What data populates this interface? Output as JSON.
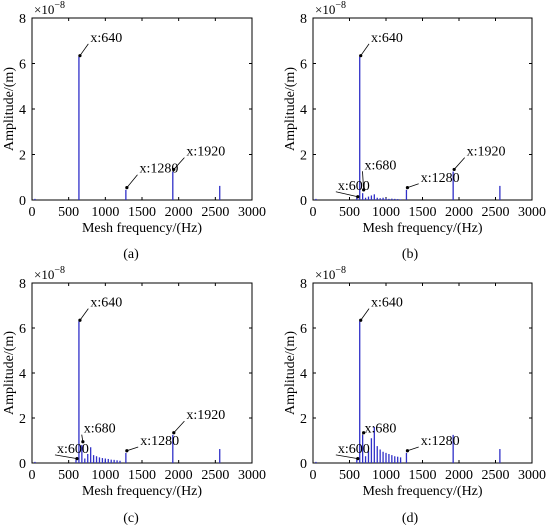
{
  "chart_data": [
    {
      "panel": "a",
      "caption": "(a)",
      "type": "bar",
      "xlabel": "Mesh frequency/(Hz)",
      "ylabel": "Amplitude/(m)",
      "y_multiplier": "×10",
      "y_multiplier_exp": "−8",
      "xlim": [
        0,
        3000
      ],
      "ylim": [
        0,
        8
      ],
      "xticks": [
        "0",
        "500",
        "1000",
        "1500",
        "2000",
        "2500",
        "3000"
      ],
      "yticks": [
        "0",
        "2",
        "4",
        "6",
        "8"
      ],
      "bar_color": "#3030c8",
      "x": [
        40,
        640,
        1280,
        1920,
        2560
      ],
      "values": [
        0.05,
        6.3,
        0.45,
        1.25,
        0.62
      ],
      "annotations": [
        {
          "text": "x:640",
          "x": 640,
          "y": 6.3,
          "tx": 850,
          "ty": 6.95
        },
        {
          "text": "x:1280",
          "x": 1280,
          "y": 0.5,
          "tx": 1520,
          "ty": 1.2
        },
        {
          "text": "x:1920",
          "x": 1920,
          "y": 1.3,
          "tx": 2160,
          "ty": 1.95
        }
      ]
    },
    {
      "panel": "b",
      "caption": "(b)",
      "type": "bar",
      "xlabel": "Mesh frequency/(Hz)",
      "ylabel": "Amplitude/(m)",
      "y_multiplier": "×10",
      "y_multiplier_exp": "−8",
      "xlim": [
        0,
        3000
      ],
      "ylim": [
        0,
        8
      ],
      "xticks": [
        "0",
        "500",
        "1000",
        "1500",
        "2000",
        "2500",
        "3000"
      ],
      "yticks": [
        "0",
        "2",
        "4",
        "6",
        "8"
      ],
      "bar_color": "#3030c8",
      "x": [
        40,
        600,
        640,
        680,
        720,
        760,
        800,
        840,
        880,
        920,
        960,
        1000,
        1040,
        1080,
        1120,
        1160,
        1200,
        1280,
        1920,
        2560
      ],
      "values": [
        0.05,
        0.1,
        6.3,
        0.3,
        0.1,
        0.15,
        0.2,
        0.25,
        0.1,
        0.08,
        0.1,
        0.08,
        0.05,
        0.06,
        0.05,
        0.04,
        0.03,
        0.45,
        1.25,
        0.62
      ],
      "annotations": [
        {
          "text": "x:640",
          "x": 640,
          "y": 6.3,
          "tx": 850,
          "ty": 6.95
        },
        {
          "text": "x:680",
          "x": 680,
          "y": 0.4,
          "tx": 760,
          "ty": 1.35
        },
        {
          "text": "x:600",
          "x": 600,
          "y": 0.1,
          "tx": 395,
          "ty": 0.45
        },
        {
          "text": "x:1280",
          "x": 1280,
          "y": 0.5,
          "tx": 1530,
          "ty": 0.8
        },
        {
          "text": "x:1920",
          "x": 1920,
          "y": 1.3,
          "tx": 2160,
          "ty": 1.95
        }
      ]
    },
    {
      "panel": "c",
      "caption": "(c)",
      "type": "bar",
      "xlabel": "Mesh frequency/(Hz)",
      "ylabel": "Amplitude/(m)",
      "y_multiplier": "×10",
      "y_multiplier_exp": "−8",
      "xlim": [
        0,
        3000
      ],
      "ylim": [
        0,
        8
      ],
      "xticks": [
        "0",
        "500",
        "1000",
        "1500",
        "2000",
        "2500",
        "3000"
      ],
      "yticks": [
        "0",
        "2",
        "4",
        "6",
        "8"
      ],
      "bar_color": "#3030c8",
      "x": [
        40,
        600,
        640,
        680,
        720,
        760,
        800,
        840,
        880,
        920,
        960,
        1000,
        1040,
        1080,
        1120,
        1160,
        1200,
        1280,
        1920,
        2560
      ],
      "values": [
        0.05,
        0.15,
        6.3,
        0.8,
        0.2,
        0.4,
        0.7,
        0.35,
        0.3,
        0.25,
        0.22,
        0.2,
        0.18,
        0.15,
        0.14,
        0.12,
        0.1,
        0.45,
        1.25,
        0.62
      ],
      "annotations": [
        {
          "text": "x:640",
          "x": 640,
          "y": 6.3,
          "tx": 850,
          "ty": 6.95
        },
        {
          "text": "x:680",
          "x": 680,
          "y": 0.9,
          "tx": 760,
          "ty": 1.35
        },
        {
          "text": "x:600",
          "x": 600,
          "y": 0.15,
          "tx": 395,
          "ty": 0.45
        },
        {
          "text": "x:1280",
          "x": 1280,
          "y": 0.5,
          "tx": 1530,
          "ty": 0.8
        },
        {
          "text": "x:1920",
          "x": 1920,
          "y": 1.3,
          "tx": 2160,
          "ty": 1.95
        }
      ]
    },
    {
      "panel": "d",
      "caption": "(d)",
      "type": "bar",
      "xlabel": "Mesh frequency/(Hz)",
      "ylabel": "Amplitude/(m)",
      "y_multiplier": "×10",
      "y_multiplier_exp": "−8",
      "xlim": [
        0,
        3000
      ],
      "ylim": [
        0,
        8
      ],
      "xticks": [
        "0",
        "500",
        "1000",
        "1500",
        "2000",
        "2500",
        "3000"
      ],
      "yticks": [
        "0",
        "2",
        "4",
        "6",
        "8"
      ],
      "bar_color": "#3030c8",
      "x": [
        40,
        600,
        640,
        680,
        720,
        760,
        800,
        840,
        880,
        920,
        960,
        1000,
        1040,
        1080,
        1120,
        1160,
        1200,
        1280,
        1920,
        2560
      ],
      "values": [
        0.05,
        0.15,
        6.3,
        1.25,
        0.3,
        0.55,
        1.1,
        1.6,
        0.75,
        0.6,
        0.5,
        0.45,
        0.4,
        0.35,
        0.3,
        0.28,
        0.25,
        0.45,
        1.25,
        0.62
      ],
      "annotations": [
        {
          "text": "x:640",
          "x": 640,
          "y": 6.3,
          "tx": 850,
          "ty": 6.95
        },
        {
          "text": "x:680",
          "x": 680,
          "y": 1.3,
          "tx": 760,
          "ty": 1.35
        },
        {
          "text": "x:600",
          "x": 600,
          "y": 0.15,
          "tx": 395,
          "ty": 0.45
        },
        {
          "text": "x:1280",
          "x": 1280,
          "y": 0.5,
          "tx": 1530,
          "ty": 0.8
        }
      ]
    }
  ]
}
